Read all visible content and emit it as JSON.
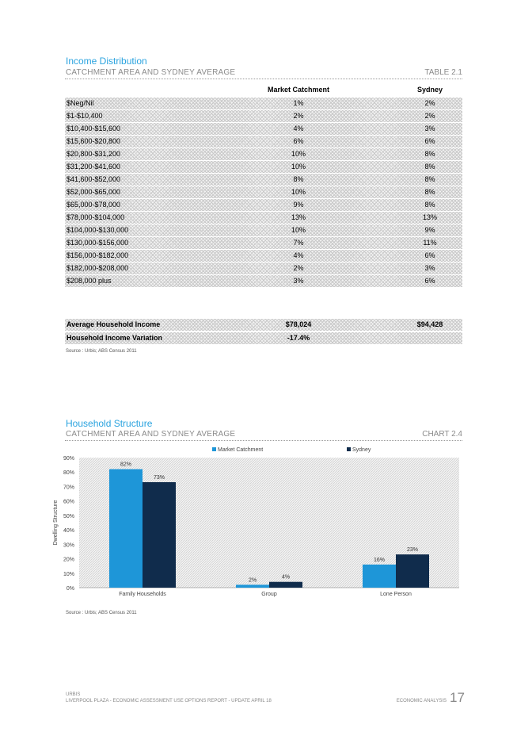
{
  "section1": {
    "title": "Income Distribution",
    "subtitle": "CATCHMENT AREA AND SYDNEY AVERAGE",
    "tag": "TABLE 2.1"
  },
  "table": {
    "headers": [
      "",
      "Market Catchment",
      "Sydney"
    ],
    "rows": [
      [
        "$Neg/Nil",
        "1%",
        "2%"
      ],
      [
        "$1-$10,400",
        "2%",
        "2%"
      ],
      [
        "$10,400-$15,600",
        "4%",
        "3%"
      ],
      [
        "$15,600-$20,800",
        "6%",
        "6%"
      ],
      [
        "$20,800-$31,200",
        "10%",
        "8%"
      ],
      [
        "$31,200-$41,600",
        "10%",
        "8%"
      ],
      [
        "$41,600-$52,000",
        "8%",
        "8%"
      ],
      [
        "$52,000-$65,000",
        "10%",
        "8%"
      ],
      [
        "$65,000-$78,000",
        "9%",
        "8%"
      ],
      [
        "$78,000-$104,000",
        "13%",
        "13%"
      ],
      [
        "$104,000-$130,000",
        "10%",
        "9%"
      ],
      [
        "$130,000-$156,000",
        "7%",
        "11%"
      ],
      [
        "$156,000-$182,000",
        "4%",
        "6%"
      ],
      [
        "$182,000-$208,000",
        "2%",
        "3%"
      ],
      [
        "$208,000 plus",
        "3%",
        "6%"
      ]
    ],
    "summary": [
      [
        "Average Household Income",
        "$78,024",
        "$94,428"
      ],
      [
        "Household Income Variation",
        "-17.4%",
        ""
      ]
    ],
    "source": "Source : Urbis; ABS Census 2011"
  },
  "section2": {
    "title": "Household Structure",
    "subtitle": "CATCHMENT AREA AND SYDNEY AVERAGE",
    "tag": "CHART 2.4"
  },
  "chart_data": {
    "type": "bar",
    "categories": [
      "Family Households",
      "Group",
      "Lone Person"
    ],
    "series": [
      {
        "name": "Market Catchment",
        "values": [
          82,
          2,
          16
        ],
        "color": "#1e96d8"
      },
      {
        "name": "Sydney",
        "values": [
          73,
          4,
          23
        ],
        "color": "#102c4c"
      }
    ],
    "data_labels": [
      [
        "82%",
        "2%",
        "16%"
      ],
      [
        "73%",
        "4%",
        "23%"
      ]
    ],
    "ylabel": "Dwelling Structure",
    "ylim": [
      0,
      90
    ],
    "yticks": [
      "0%",
      "10%",
      "20%",
      "30%",
      "40%",
      "50%",
      "60%",
      "70%",
      "80%",
      "90%"
    ],
    "legend_position": "top",
    "grid": false,
    "source": "Source : Urbis; ABS Census 2011"
  },
  "footer": {
    "left_line1": "URBIS",
    "left_line2": "LIVERPOOL PLAZA - ECONOMIC ASSESSMENT USE OPTIONS REPORT - UPDATE APRIL 18",
    "right_text": "ECONOMIC ANALYSIS",
    "page_number": "17"
  }
}
